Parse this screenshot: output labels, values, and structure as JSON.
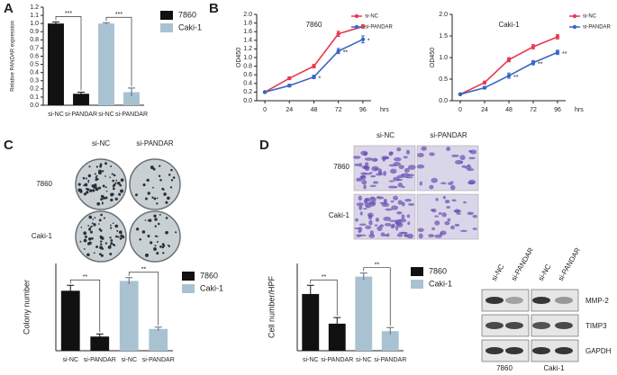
{
  "panel_labels": [
    "A",
    "B",
    "C",
    "D"
  ],
  "chart_data": [
    {
      "type": "bar",
      "ylabel": "Relative PANDAR expression",
      "categories": [
        "si-NC",
        "si-PANDAR",
        "si-NC",
        "si-PANDAR"
      ],
      "series": [
        {
          "name": "7860",
          "color": "#111111",
          "values": [
            1.0,
            0.14,
            null,
            null
          ],
          "errors": [
            0.02,
            0.02,
            null,
            null
          ]
        },
        {
          "name": "Caki-1",
          "color": "#a9c2d2",
          "values": [
            null,
            null,
            1.0,
            0.16
          ],
          "errors": [
            null,
            null,
            0.01,
            0.05
          ]
        }
      ],
      "ylim": [
        0,
        1.2
      ],
      "yticks": [
        {
          "value": 0,
          "label": "0.0"
        },
        0.1,
        0.2,
        0.3,
        0.4,
        0.5,
        0.6,
        0.7,
        0.8,
        0.9,
        {
          "value": 1,
          "label": "1.0"
        },
        1.1,
        1.2
      ],
      "annotations": [
        "***",
        "***"
      ]
    },
    {
      "type": "line",
      "title": "7860",
      "ylabel": "OD450",
      "xlabel": "hrs",
      "x": [
        0,
        24,
        48,
        72,
        96
      ],
      "series": [
        {
          "name": "si-NC",
          "color": "#e8384f",
          "values": [
            0.2,
            0.52,
            0.8,
            1.55,
            1.72
          ],
          "errors": [
            0.02,
            0.03,
            0.04,
            0.06,
            0.04
          ]
        },
        {
          "name": "si-PANDAR",
          "color": "#3a66c4",
          "values": [
            0.2,
            0.35,
            0.55,
            1.15,
            1.42
          ],
          "errors": [
            0.02,
            0.03,
            0.04,
            0.06,
            0.08
          ]
        }
      ],
      "xlim": [
        -8,
        104
      ],
      "xticks": [
        0,
        24,
        48,
        72,
        96
      ],
      "ylim": [
        0,
        2.0
      ],
      "yticks": [
        {
          "value": 0,
          "label": "0.0"
        },
        0.2,
        0.4,
        0.6,
        0.8,
        {
          "value": 1,
          "label": "1.0"
        },
        1.2,
        1.4,
        1.6,
        1.8,
        {
          "value": 2,
          "label": "2.0"
        }
      ],
      "annotations": [
        {
          "text": "*",
          "x": 48
        },
        {
          "text": "**",
          "x": 72
        },
        {
          "text": "*",
          "x": 96
        }
      ]
    },
    {
      "type": "line",
      "title": "Caki-1",
      "ylabel": "OD450",
      "xlabel": "hrs",
      "x": [
        0,
        24,
        48,
        72,
        96
      ],
      "series": [
        {
          "name": "si-NC",
          "color": "#e8384f",
          "values": [
            0.15,
            0.42,
            0.95,
            1.25,
            1.48
          ],
          "errors": [
            0.02,
            0.03,
            0.05,
            0.05,
            0.05
          ]
        },
        {
          "name": "si-PANDAR",
          "color": "#3a66c4",
          "values": [
            0.15,
            0.3,
            0.58,
            0.88,
            1.12
          ],
          "errors": [
            0.02,
            0.03,
            0.06,
            0.05,
            0.05
          ]
        }
      ],
      "xlim": [
        -8,
        104
      ],
      "xticks": [
        0,
        24,
        48,
        72,
        96
      ],
      "ylim": [
        0,
        2.0
      ],
      "yticks": [
        {
          "value": 0,
          "label": "0.0"
        },
        0.5,
        {
          "value": 1,
          "label": "1.0"
        },
        1.5,
        {
          "value": 2,
          "label": "2.0"
        }
      ],
      "annotations": [
        {
          "text": "**",
          "x": 48
        },
        {
          "text": "**",
          "x": 72
        },
        {
          "text": "**",
          "x": 96
        }
      ]
    },
    {
      "type": "bar",
      "ylabel": "Colony number",
      "categories": [
        "si-NC",
        "si-PANDAR",
        "si-NC",
        "si-PANDAR"
      ],
      "series": [
        {
          "name": "7860",
          "color": "#111111",
          "values": [
            275,
            65,
            null,
            null
          ],
          "errors": [
            25,
            12,
            null,
            null
          ]
        },
        {
          "name": "Caki-1",
          "color": "#a9c2d2",
          "values": [
            null,
            null,
            320,
            100
          ],
          "errors": [
            null,
            null,
            15,
            8
          ]
        }
      ],
      "ylim": [
        0,
        400
      ],
      "annotations": [
        "**",
        "**"
      ]
    },
    {
      "type": "bar",
      "ylabel": "Cell number/HPF",
      "categories": [
        "si-NC",
        "si-PANDAR",
        "si-NC",
        "si-PANDAR"
      ],
      "series": [
        {
          "name": "7860",
          "color": "#111111",
          "values": [
            130,
            62,
            null,
            null
          ],
          "errors": [
            20,
            14,
            null,
            null
          ]
        },
        {
          "name": "Caki-1",
          "color": "#a9c2d2",
          "values": [
            null,
            null,
            170,
            45
          ],
          "errors": [
            null,
            null,
            8,
            8
          ]
        }
      ],
      "ylim": [
        0,
        200
      ],
      "annotations": [
        "**",
        "**"
      ]
    }
  ],
  "colony_image": {
    "columns": [
      "si-NC",
      "si-PANDAR"
    ],
    "rows": [
      "7860",
      "Caki-1"
    ]
  },
  "transwell_image": {
    "columns": [
      "si-NC",
      "si-PANDAR"
    ],
    "rows": [
      "7860",
      "Caki-1"
    ]
  },
  "western_blot": {
    "columns": [
      "si-NC",
      "si-PANDAR",
      "si-NC",
      "si-PANDAR"
    ],
    "rows": [
      "MMP-2",
      "TIMP3",
      "GAPDH"
    ],
    "groups": [
      "7860",
      "Caki-1"
    ]
  }
}
